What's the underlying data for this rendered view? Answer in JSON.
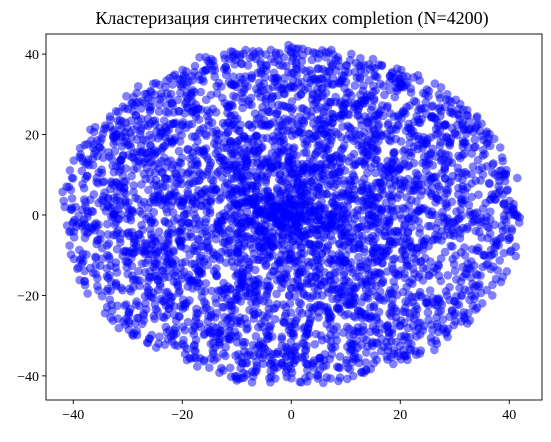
{
  "chart_data": {
    "type": "scatter",
    "title": "Кластеризация синтетических completion (N=4200)",
    "xlabel": "",
    "ylabel": "",
    "xlim": [
      -45,
      46
    ],
    "ylim": [
      -46,
      45
    ],
    "x_ticks": [
      -40,
      -20,
      0,
      20,
      40
    ],
    "y_ticks": [
      -40,
      -20,
      0,
      20,
      40
    ],
    "grid": false,
    "series": [
      {
        "marker_color": "#0000ff",
        "marker_alpha": 0.5,
        "n_points": 4200,
        "distribution": {
          "shape": "elliptical cloud",
          "center": [
            0,
            0
          ],
          "x_extent": [
            -42,
            42
          ],
          "y_extent": [
            -42,
            42
          ],
          "density": "highest at center, sparser toward edge"
        }
      }
    ]
  }
}
